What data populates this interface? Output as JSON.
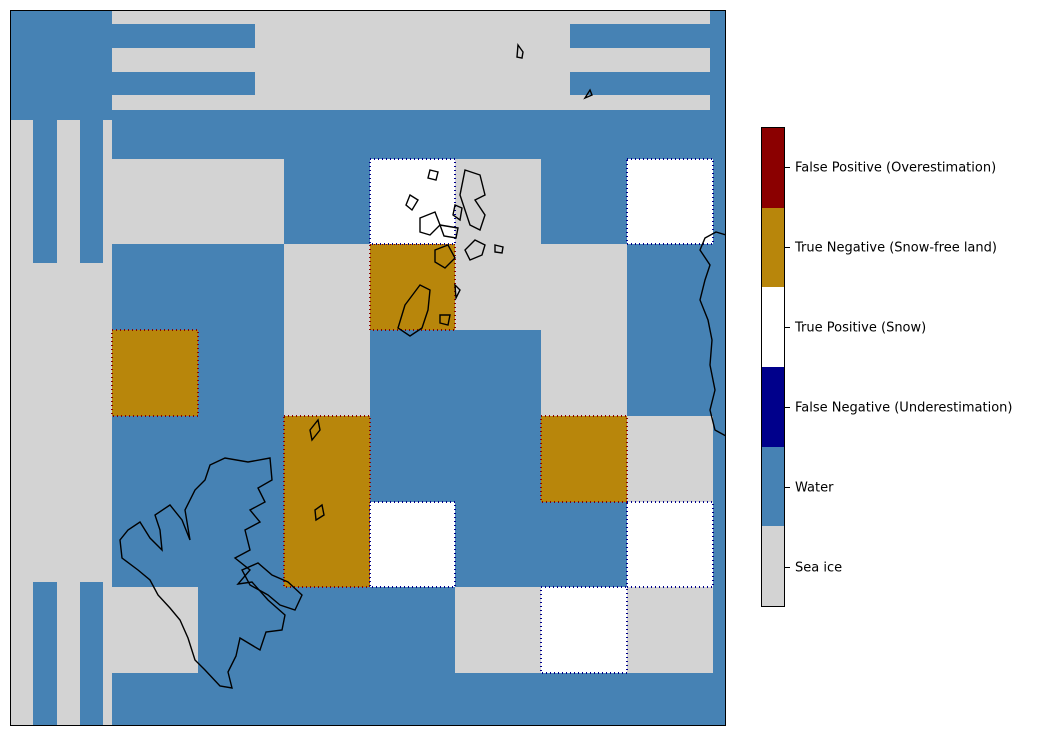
{
  "map": {
    "classes": [
      {
        "key": "seaice",
        "color": "#d3d3d3"
      },
      {
        "key": "water",
        "color": "#4682b4"
      },
      {
        "key": "fn",
        "color": "#00008b"
      },
      {
        "key": "tp",
        "color": "#ffffff"
      },
      {
        "key": "tn",
        "color": "#b8860b"
      },
      {
        "key": "fp",
        "color": "#8b0000"
      }
    ]
  },
  "legend": {
    "entries": [
      {
        "label": "False Positive (Overestimation)",
        "color": "#8b0000"
      },
      {
        "label": "True Negative (Snow-free land)",
        "color": "#b8860b"
      },
      {
        "label": "True Positive (Snow)",
        "color": "#ffffff"
      },
      {
        "label": "False Negative (Underestimation)",
        "color": "#00008b"
      },
      {
        "label": "Water",
        "color": "#4682b4"
      },
      {
        "label": "Sea ice",
        "color": "#d3d3d3"
      }
    ]
  }
}
